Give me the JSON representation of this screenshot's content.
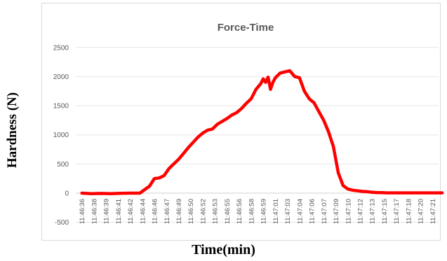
{
  "chart_data": {
    "type": "line",
    "title": "Force-Time",
    "xlabel": "Time(min)",
    "ylabel": "Hardness (N)",
    "ylim": [
      -500,
      2500
    ],
    "yticks": [
      -500,
      0,
      500,
      1000,
      1500,
      2000,
      2500
    ],
    "grid": true,
    "legend": "none",
    "x_tick_labels": [
      "11:46:36",
      "11:46:38",
      "11:46:39",
      "11:46:41",
      "11:46:42",
      "11:46:44",
      "11:46:46",
      "11:46:47",
      "11:46:49",
      "11:46:50",
      "11:46:52",
      "11:46:53",
      "11:46:55",
      "11:46:56",
      "11:46:58",
      "11:46:59",
      "11:47:01",
      "11:47:03",
      "11:47:04",
      "11:47:06",
      "11:47:07",
      "11:47:09",
      "11:47:10",
      "11:47:12",
      "11:47:13",
      "11:47:15",
      "11:47:17",
      "11:47:18",
      "11:47:20",
      "11:47:21"
    ],
    "series": [
      {
        "color": "#ff0000",
        "x": [
          0,
          0.8,
          1.6,
          2.4,
          3.2,
          4,
          4.8,
          5.6,
          6,
          6.4,
          6.8,
          7.2,
          7.6,
          8,
          8.4,
          8.8,
          9.2,
          9.6,
          10,
          10.4,
          10.8,
          11.2,
          11.6,
          12,
          12.4,
          12.8,
          13.2,
          13.6,
          14,
          14.4,
          14.8,
          15,
          15.2,
          15.4,
          15.6,
          15.8,
          16,
          16.4,
          16.8,
          17.2,
          17.6,
          18,
          18.4,
          18.8,
          19.2,
          19.6,
          20,
          20.4,
          20.8,
          21.2,
          21.6,
          22,
          22.4,
          22.8,
          23.2,
          23.6,
          24,
          24.4,
          24.8,
          25.2,
          25.6,
          26,
          26.4,
          26.8,
          27.2,
          27.6,
          28,
          28.4,
          28.8,
          29.2,
          29.6,
          29.8
        ],
        "y": [
          0,
          -10,
          -5,
          -8,
          -3,
          0,
          0,
          120,
          250,
          260,
          300,
          420,
          500,
          580,
          680,
          780,
          870,
          960,
          1030,
          1080,
          1100,
          1180,
          1230,
          1280,
          1340,
          1380,
          1450,
          1540,
          1620,
          1780,
          1880,
          1960,
          1900,
          1990,
          1780,
          1900,
          1980,
          2060,
          2080,
          2100,
          2000,
          1980,
          1750,
          1620,
          1550,
          1400,
          1250,
          1050,
          800,
          350,
          130,
          70,
          50,
          40,
          30,
          25,
          15,
          10,
          10,
          5,
          5,
          5,
          5,
          5,
          5,
          5,
          5,
          5,
          5,
          5,
          5,
          5
        ]
      }
    ]
  }
}
